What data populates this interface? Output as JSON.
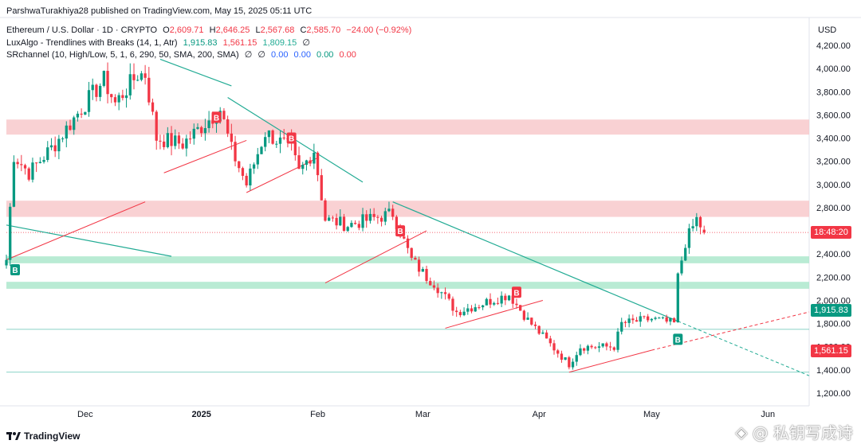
{
  "publish_line": "ParshwaTurakhiya28 published on TradingView.com, May 15, 2025 05:11 UTC",
  "legend": {
    "symbol": "Ethereum / U.S. Dollar · 1D · CRYPTO",
    "o_label": "O",
    "o": "2,609.71",
    "h_label": "H",
    "h": "2,646.25",
    "l_label": "L",
    "l": "2,567.68",
    "c_label": "C",
    "c": "2,585.70",
    "change": "−24.00 (−0.92%)",
    "ind1_name": "LuxAlgo - Trendlines with Breaks (14, 1, Atr)",
    "ind1_v1": "1,915.83",
    "ind1_v2": "1,561.15",
    "ind1_v3": "1,809.15",
    "ind1_null": "∅",
    "ind2_name": "SRchannel (10, High/Low, 5, 1, 6, 290, 50, SMA, 200, SMA)",
    "ind2_null1": "∅",
    "ind2_null2": "∅",
    "ind2_v1": "0.00",
    "ind2_v2": "0.00",
    "ind2_v3": "0.00",
    "ind2_v4": "0.00"
  },
  "currency": "USD",
  "price_labels": {
    "countdown": "18:48:20",
    "upper_trend": "1,915.83",
    "lower_trend": "1,561.15"
  },
  "footer_brand": "TradingView",
  "watermark_text": "@ 私钥写成诗",
  "colors": {
    "up": "#089981",
    "down": "#f23645",
    "res_zone": "#f7c5c8",
    "sup_zone": "#a8e6c9",
    "trend_down": "#22ab94",
    "trend_up": "#f23645",
    "grid": "#f0f3fa"
  },
  "chart_data": {
    "type": "candlestick",
    "title": "Ethereum / U.S. Dollar · 1D · CRYPTO",
    "ylim": [
      1150,
      4350
    ],
    "y_ticks": [
      1200,
      1400,
      1600,
      1800,
      2000,
      2200,
      2400,
      2600,
      2800,
      3000,
      3200,
      3400,
      3600,
      3800,
      4000,
      4200
    ],
    "x_ticks": [
      "Dec",
      "2025",
      "Feb",
      "Mar",
      "Apr",
      "May",
      "Jun"
    ],
    "x_range": [
      "2024-11-10",
      "2025-06-12"
    ],
    "grid": false,
    "resistance_zones": [
      [
        3430,
        3560
      ],
      [
        2720,
        2860
      ]
    ],
    "support_zones": [
      [
        2320,
        2380
      ],
      [
        2100,
        2160
      ]
    ],
    "horizontal_levels": [
      1750,
      1380
    ],
    "buy_signals": [
      {
        "date": "2024-11-10",
        "price": 2340
      },
      {
        "date": "2025-05-08",
        "price": 1740
      }
    ],
    "sell_signals": [
      {
        "date": "2025-01-05",
        "price": 3580
      },
      {
        "date": "2025-01-25",
        "price": 3400
      },
      {
        "date": "2025-02-23",
        "price": 2600
      },
      {
        "date": "2025-03-26",
        "price": 2070
      }
    ],
    "close_path": [
      {
        "date": "2024-11-10",
        "close": 2350
      },
      {
        "date": "2024-11-12",
        "close": 3250
      },
      {
        "date": "2024-11-16",
        "close": 3100
      },
      {
        "date": "2024-11-23",
        "close": 3350
      },
      {
        "date": "2024-12-01",
        "close": 3700
      },
      {
        "date": "2024-12-06",
        "close": 3900
      },
      {
        "date": "2024-12-09",
        "close": 3700
      },
      {
        "date": "2024-12-15",
        "close": 3950
      },
      {
        "date": "2024-12-17",
        "close": 3950
      },
      {
        "date": "2024-12-20",
        "close": 3400
      },
      {
        "date": "2024-12-27",
        "close": 3350
      },
      {
        "date": "2025-01-06",
        "close": 3650
      },
      {
        "date": "2025-01-09",
        "close": 3300
      },
      {
        "date": "2025-01-13",
        "close": 3000
      },
      {
        "date": "2025-01-18",
        "close": 3450
      },
      {
        "date": "2025-01-25",
        "close": 3300
      },
      {
        "date": "2025-01-27",
        "close": 3100
      },
      {
        "date": "2025-01-31",
        "close": 3300
      },
      {
        "date": "2025-02-03",
        "close": 2700
      },
      {
        "date": "2025-02-09",
        "close": 2650
      },
      {
        "date": "2025-02-21",
        "close": 2750
      },
      {
        "date": "2025-02-26",
        "close": 2350
      },
      {
        "date": "2025-03-02",
        "close": 2200
      },
      {
        "date": "2025-03-04",
        "close": 2150
      },
      {
        "date": "2025-03-10",
        "close": 1900
      },
      {
        "date": "2025-03-24",
        "close": 2050
      },
      {
        "date": "2025-03-29",
        "close": 1830
      },
      {
        "date": "2025-04-06",
        "close": 1550
      },
      {
        "date": "2025-04-09",
        "close": 1450
      },
      {
        "date": "2025-04-12",
        "close": 1600
      },
      {
        "date": "2025-04-21",
        "close": 1600
      },
      {
        "date": "2025-04-23",
        "close": 1800
      },
      {
        "date": "2025-05-01",
        "close": 1840
      },
      {
        "date": "2025-05-07",
        "close": 1800
      },
      {
        "date": "2025-05-08",
        "close": 2200
      },
      {
        "date": "2025-05-10",
        "close": 2500
      },
      {
        "date": "2025-05-13",
        "close": 2700
      },
      {
        "date": "2025-05-15",
        "close": 2586
      }
    ],
    "trendlines_down": [
      {
        "from": {
          "date": "2024-11-10",
          "price": 2650
        },
        "to": {
          "date": "2024-12-24",
          "price": 2380
        }
      },
      {
        "from": {
          "date": "2024-12-21",
          "price": 4080
        },
        "to": {
          "date": "2025-01-09",
          "price": 3850
        }
      },
      {
        "from": {
          "date": "2025-01-08",
          "price": 3750
        },
        "to": {
          "date": "2025-02-13",
          "price": 3020
        }
      },
      {
        "from": {
          "date": "2025-02-21",
          "price": 2850
        },
        "to": {
          "date": "2025-05-08",
          "price": 1820
        }
      }
    ],
    "trendlines_up": [
      {
        "from": {
          "date": "2024-11-10",
          "price": 2350
        },
        "to": {
          "date": "2024-12-17",
          "price": 2850
        }
      },
      {
        "from": {
          "date": "2024-12-22",
          "price": 3100
        },
        "to": {
          "date": "2025-01-13",
          "price": 3380
        }
      },
      {
        "from": {
          "date": "2025-01-13",
          "price": 2930
        },
        "to": {
          "date": "2025-02-01",
          "price": 3230
        }
      },
      {
        "from": {
          "date": "2025-02-03",
          "price": 2150
        },
        "to": {
          "date": "2025-03-02",
          "price": 2600
        }
      },
      {
        "from": {
          "date": "2025-03-07",
          "price": 1760
        },
        "to": {
          "date": "2025-04-02",
          "price": 2000
        }
      },
      {
        "from": {
          "date": "2025-04-09",
          "price": 1380
        },
        "to": {
          "date": "2025-05-01",
          "price": 1570
        }
      }
    ],
    "projections": [
      {
        "from": {
          "date": "2025-05-08",
          "price": 1820
        },
        "to": {
          "date": "2025-06-12",
          "price": 1350
        },
        "color": "#22ab94"
      },
      {
        "from": {
          "date": "2025-05-01",
          "price": 1570
        },
        "to": {
          "date": "2025-06-12",
          "price": 1900
        },
        "color": "#f23645"
      }
    ],
    "last_price": 2585.7
  }
}
